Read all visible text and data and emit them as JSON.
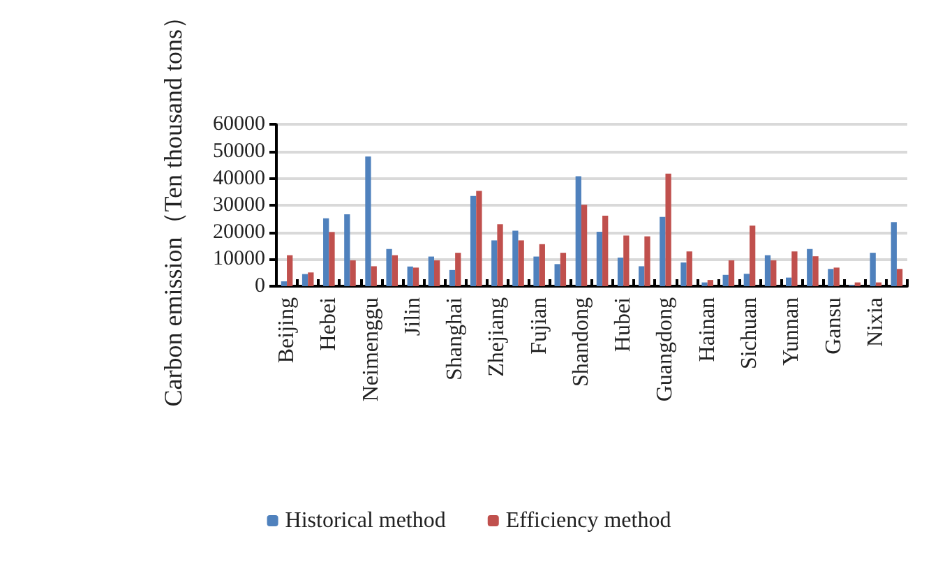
{
  "chart_data": {
    "type": "bar",
    "ylabel": "Carbon emission（Ten thousand tons）",
    "categories": [
      "Beijing",
      null,
      "Hebei",
      null,
      "Neimenggu",
      null,
      "Jilin",
      null,
      "Shanghai",
      null,
      "Zhejiang",
      null,
      "Fujian",
      null,
      "Shandong",
      null,
      "Hubei",
      null,
      "Guangdong",
      null,
      "Hainan",
      null,
      "Sichuan",
      null,
      "Yunnan",
      null,
      "Gansu",
      null,
      "Nixia",
      null
    ],
    "series": [
      {
        "name": "Historical method",
        "color": "#4f81bd",
        "values": [
          1800,
          4500,
          25200,
          26700,
          48100,
          13800,
          7300,
          11000,
          6000,
          33500,
          17000,
          20600,
          11000,
          8200,
          40800,
          20200,
          10600,
          7400,
          25700,
          8800,
          1400,
          4200,
          4600,
          11500,
          3200,
          13800,
          6400,
          400,
          12400,
          23800
        ]
      },
      {
        "name": "Efficiency method",
        "color": "#c0504d",
        "values": [
          11500,
          5100,
          20100,
          9600,
          7400,
          11500,
          6900,
          9600,
          12400,
          35400,
          23000,
          17000,
          15600,
          12400,
          30200,
          26200,
          18800,
          18500,
          41800,
          12900,
          2300,
          9600,
          22500,
          9600,
          12900,
          11100,
          6900,
          1400,
          1400,
          6400
        ]
      }
    ],
    "ylim": [
      0,
      60000
    ],
    "yticks": [
      0,
      10000,
      20000,
      30000,
      40000,
      50000,
      60000
    ],
    "grid": "y",
    "legend": "bottom"
  }
}
